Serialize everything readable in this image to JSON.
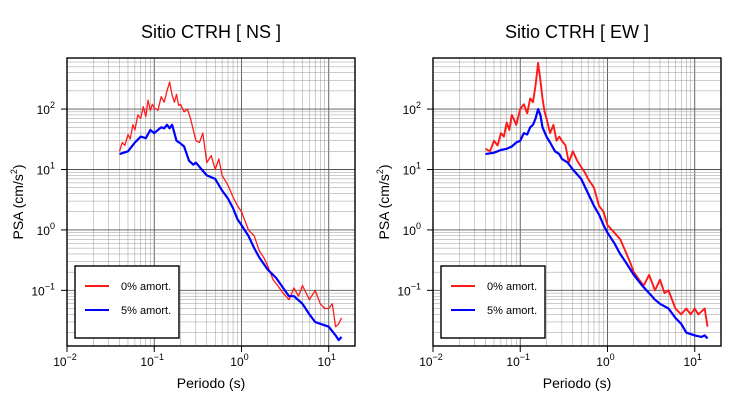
{
  "chart_data": [
    {
      "type": "line",
      "title": "Sitio CTRH [ NS ]",
      "xlabel": "Periodo (s)",
      "ylabel_main": "PSA (cm/s",
      "ylabel_sup": "2",
      "ylabel_tail": ")",
      "xscale": "log",
      "yscale": "log",
      "xlim": [
        0.01,
        20
      ],
      "ylim": [
        0.012,
        700
      ],
      "grid": true,
      "legend_position": "bottom-left",
      "x_ticks": [
        {
          "value": 0.01,
          "base": "10",
          "exp": "−2"
        },
        {
          "value": 0.1,
          "base": "10",
          "exp": "−1"
        },
        {
          "value": 1,
          "base": "10",
          "exp": "0"
        },
        {
          "value": 10,
          "base": "10",
          "exp": "1"
        }
      ],
      "y_ticks": [
        {
          "value": 0.1,
          "base": "10",
          "exp": "−1"
        },
        {
          "value": 1,
          "base": "10",
          "exp": "0"
        },
        {
          "value": 10,
          "base": "10",
          "exp": "1"
        },
        {
          "value": 100,
          "base": "10",
          "exp": "2"
        }
      ],
      "series": [
        {
          "name": "0% amort.",
          "color": "#ff1a1a",
          "x": [
            0.04,
            0.043,
            0.046,
            0.05,
            0.053,
            0.057,
            0.06,
            0.065,
            0.07,
            0.075,
            0.08,
            0.085,
            0.09,
            0.095,
            0.1,
            0.11,
            0.12,
            0.13,
            0.14,
            0.15,
            0.16,
            0.17,
            0.18,
            0.19,
            0.2,
            0.22,
            0.24,
            0.26,
            0.28,
            0.3,
            0.33,
            0.36,
            0.4,
            0.45,
            0.5,
            0.55,
            0.6,
            0.7,
            0.8,
            0.9,
            1.0,
            1.2,
            1.4,
            1.6,
            1.8,
            2.0,
            2.3,
            2.6,
            3.0,
            3.5,
            4.0,
            4.5,
            5.0,
            6.0,
            7.0,
            8.0,
            9.0,
            10.0,
            11.0,
            12.0,
            13.0,
            14.0
          ],
          "y": [
            20,
            28,
            25,
            38,
            32,
            55,
            45,
            80,
            70,
            110,
            75,
            140,
            95,
            120,
            105,
            95,
            160,
            130,
            200,
            280,
            170,
            130,
            175,
            115,
            120,
            90,
            100,
            70,
            45,
            30,
            28,
            40,
            13,
            17,
            10,
            15,
            8,
            5.5,
            3.5,
            2.5,
            2.0,
            1.0,
            0.8,
            0.45,
            0.35,
            0.25,
            0.15,
            0.12,
            0.09,
            0.07,
            0.11,
            0.08,
            0.12,
            0.07,
            0.1,
            0.06,
            0.05,
            0.05,
            0.06,
            0.025,
            0.028,
            0.035
          ]
        },
        {
          "name": "5% amort.",
          "color": "#0000ff",
          "x": [
            0.04,
            0.05,
            0.06,
            0.07,
            0.08,
            0.09,
            0.1,
            0.11,
            0.12,
            0.13,
            0.14,
            0.15,
            0.16,
            0.17,
            0.18,
            0.2,
            0.22,
            0.25,
            0.28,
            0.3,
            0.35,
            0.4,
            0.5,
            0.6,
            0.7,
            0.8,
            0.9,
            1.0,
            1.2,
            1.4,
            1.6,
            2.0,
            2.5,
            3.0,
            3.5,
            4.0,
            5.0,
            6.0,
            7.0,
            8.0,
            10.0,
            12.0,
            13.0,
            14.0
          ],
          "y": [
            18,
            20,
            28,
            35,
            33,
            45,
            40,
            45,
            50,
            48,
            55,
            48,
            55,
            40,
            30,
            27,
            24,
            14,
            12,
            13,
            10,
            8,
            7,
            4.5,
            3.3,
            2.3,
            1.5,
            1.2,
            0.8,
            0.5,
            0.35,
            0.22,
            0.16,
            0.11,
            0.08,
            0.08,
            0.06,
            0.04,
            0.03,
            0.028,
            0.025,
            0.018,
            0.015,
            0.017
          ]
        }
      ]
    },
    {
      "type": "line",
      "title": "Sitio CTRH [ EW ]",
      "xlabel": "Periodo (s)",
      "ylabel_main": "PSA (cm/s",
      "ylabel_sup": "2",
      "ylabel_tail": ")",
      "xscale": "log",
      "yscale": "log",
      "xlim": [
        0.01,
        20
      ],
      "ylim": [
        0.012,
        700
      ],
      "grid": true,
      "legend_position": "bottom-left",
      "x_ticks": [
        {
          "value": 0.01,
          "base": "10",
          "exp": "−2"
        },
        {
          "value": 0.1,
          "base": "10",
          "exp": "−1"
        },
        {
          "value": 1,
          "base": "10",
          "exp": "0"
        },
        {
          "value": 10,
          "base": "10",
          "exp": "1"
        }
      ],
      "y_ticks": [
        {
          "value": 0.1,
          "base": "10",
          "exp": "−1"
        },
        {
          "value": 1,
          "base": "10",
          "exp": "0"
        },
        {
          "value": 10,
          "base": "10",
          "exp": "1"
        },
        {
          "value": 100,
          "base": "10",
          "exp": "2"
        }
      ],
      "series": [
        {
          "name": "0% amort.",
          "color": "#ff1a1a",
          "x": [
            0.04,
            0.045,
            0.05,
            0.055,
            0.06,
            0.065,
            0.07,
            0.075,
            0.08,
            0.09,
            0.1,
            0.11,
            0.12,
            0.13,
            0.14,
            0.15,
            0.16,
            0.17,
            0.18,
            0.19,
            0.2,
            0.22,
            0.24,
            0.26,
            0.28,
            0.3,
            0.33,
            0.36,
            0.4,
            0.45,
            0.5,
            0.55,
            0.6,
            0.7,
            0.8,
            0.9,
            1.0,
            1.2,
            1.4,
            1.6,
            1.8,
            2.0,
            2.3,
            2.6,
            3.0,
            3.5,
            4.0,
            4.5,
            5.0,
            6.0,
            7.0,
            8.0,
            9.0,
            10.0,
            11.0,
            12.0,
            13.0,
            14.0
          ],
          "y": [
            22,
            20,
            30,
            25,
            40,
            35,
            60,
            45,
            80,
            55,
            100,
            120,
            85,
            150,
            130,
            250,
            580,
            300,
            150,
            90,
            70,
            40,
            55,
            30,
            35,
            30,
            25,
            13,
            20,
            14,
            11,
            9,
            7,
            5,
            2.5,
            2.0,
            1.2,
            0.9,
            0.7,
            0.45,
            0.3,
            0.2,
            0.15,
            0.12,
            0.18,
            0.1,
            0.15,
            0.09,
            0.1,
            0.05,
            0.04,
            0.05,
            0.04,
            0.05,
            0.04,
            0.045,
            0.05,
            0.025
          ]
        },
        {
          "name": "5% amort.",
          "color": "#0000ff",
          "x": [
            0.04,
            0.05,
            0.06,
            0.07,
            0.08,
            0.09,
            0.1,
            0.11,
            0.12,
            0.13,
            0.14,
            0.15,
            0.16,
            0.17,
            0.18,
            0.2,
            0.22,
            0.25,
            0.28,
            0.3,
            0.35,
            0.4,
            0.5,
            0.6,
            0.7,
            0.8,
            0.9,
            1.0,
            1.2,
            1.4,
            1.6,
            2.0,
            2.5,
            3.0,
            3.5,
            4.0,
            5.0,
            6.0,
            7.0,
            8.0,
            10.0,
            12.0,
            13.0,
            14.0
          ],
          "y": [
            18,
            19,
            21,
            22,
            24,
            28,
            30,
            40,
            38,
            50,
            55,
            70,
            100,
            80,
            50,
            35,
            28,
            20,
            18,
            15,
            13,
            10,
            7,
            4,
            2.5,
            1.8,
            1.2,
            0.9,
            0.6,
            0.4,
            0.3,
            0.18,
            0.12,
            0.09,
            0.07,
            0.06,
            0.05,
            0.035,
            0.028,
            0.02,
            0.018,
            0.017,
            0.018,
            0.016
          ]
        }
      ]
    }
  ]
}
